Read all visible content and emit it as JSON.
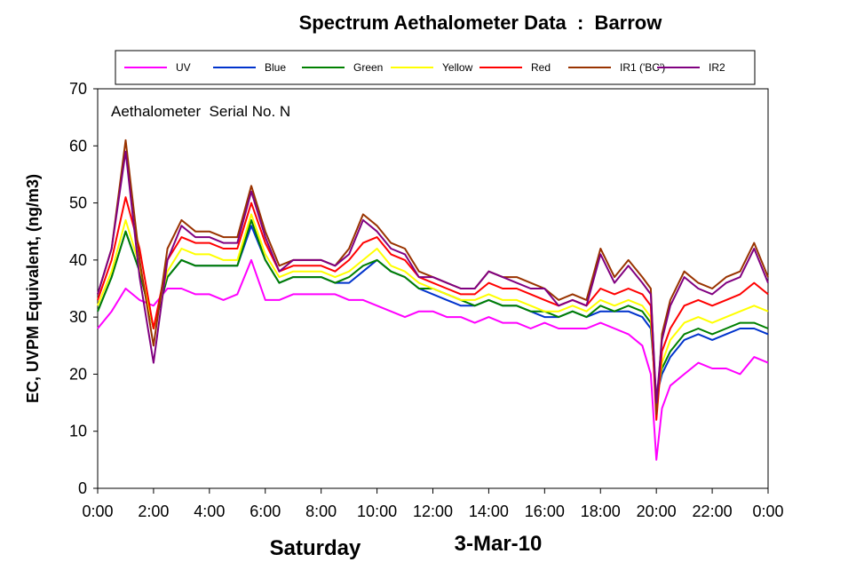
{
  "chart_data": {
    "type": "line",
    "title": "Spectrum Aethalometer Data  :  Barrow",
    "ylabel": "EC, UVPM Equivalent, (ng/m3)",
    "annotation": "Aethalometer  Serial No. N",
    "day_label": "Saturday",
    "date_label": "3-Mar-10",
    "ylim": [
      0,
      70
    ],
    "yticks": [
      "0",
      "10",
      "20",
      "30",
      "40",
      "50",
      "60",
      "70"
    ],
    "xlim": [
      0,
      24
    ],
    "xticks": [
      "0:00",
      "2:00",
      "4:00",
      "6:00",
      "8:00",
      "10:00",
      "12:00",
      "14:00",
      "16:00",
      "18:00",
      "20:00",
      "22:00",
      "0:00"
    ],
    "x_hours": [
      0,
      0.5,
      1,
      1.5,
      2,
      2.5,
      3,
      3.5,
      4,
      4.5,
      5,
      5.5,
      6,
      6.5,
      7,
      7.5,
      8,
      8.5,
      9,
      9.5,
      10,
      10.5,
      11,
      11.5,
      12,
      12.5,
      13,
      13.5,
      14,
      14.5,
      15,
      15.5,
      16,
      16.5,
      17,
      17.5,
      18,
      18.5,
      19,
      19.5,
      19.8,
      20,
      20.2,
      20.5,
      21,
      21.5,
      22,
      22.5,
      23,
      23.5,
      24
    ],
    "legend_position": "top",
    "series": [
      {
        "name": "UV",
        "color": "#ff00ff",
        "values": [
          28,
          31,
          35,
          33,
          32,
          35,
          35,
          34,
          34,
          33,
          34,
          40,
          33,
          33,
          34,
          34,
          34,
          34,
          33,
          33,
          32,
          31,
          30,
          31,
          31,
          30,
          30,
          29,
          30,
          29,
          29,
          28,
          29,
          28,
          28,
          28,
          29,
          28,
          27,
          25,
          20,
          5,
          14,
          18,
          20,
          22,
          21,
          21,
          20,
          23,
          22
        ]
      },
      {
        "name": "Blue",
        "color": "#0033cc",
        "values": [
          31,
          37,
          45,
          38,
          28,
          37,
          40,
          39,
          39,
          39,
          39,
          46,
          40,
          36,
          37,
          37,
          37,
          36,
          36,
          38,
          40,
          38,
          37,
          35,
          34,
          33,
          32,
          32,
          33,
          32,
          32,
          31,
          30,
          30,
          31,
          30,
          31,
          31,
          31,
          30,
          28,
          16,
          20,
          23,
          26,
          27,
          26,
          27,
          28,
          28,
          27
        ]
      },
      {
        "name": "Green",
        "color": "#008000",
        "values": [
          31,
          37,
          45,
          38,
          28,
          37,
          40,
          39,
          39,
          39,
          39,
          47,
          40,
          36,
          37,
          37,
          37,
          36,
          37,
          39,
          40,
          38,
          37,
          35,
          35,
          34,
          33,
          32,
          33,
          32,
          32,
          31,
          31,
          30,
          31,
          30,
          32,
          31,
          32,
          31,
          29,
          16,
          21,
          24,
          27,
          28,
          27,
          28,
          29,
          29,
          28
        ]
      },
      {
        "name": "Yellow",
        "color": "#ffff00",
        "values": [
          32,
          38,
          47,
          39,
          28,
          38,
          42,
          41,
          41,
          40,
          40,
          48,
          41,
          37,
          38,
          38,
          38,
          37,
          38,
          40,
          42,
          39,
          38,
          36,
          35,
          34,
          33,
          33,
          34,
          33,
          33,
          32,
          31,
          31,
          32,
          31,
          33,
          32,
          33,
          32,
          30,
          14,
          22,
          26,
          29,
          30,
          29,
          30,
          31,
          32,
          31
        ]
      },
      {
        "name": "Red",
        "color": "#ff0000",
        "values": [
          33,
          40,
          51,
          42,
          28,
          40,
          44,
          43,
          43,
          42,
          42,
          50,
          43,
          38,
          39,
          39,
          39,
          38,
          40,
          43,
          44,
          41,
          40,
          37,
          36,
          35,
          34,
          34,
          36,
          35,
          35,
          34,
          33,
          32,
          33,
          32,
          35,
          34,
          35,
          34,
          32,
          12,
          24,
          28,
          32,
          33,
          32,
          33,
          34,
          36,
          34
        ]
      },
      {
        "name": "IR1 ('BC')",
        "color": "#993300",
        "values": [
          34,
          42,
          61,
          40,
          25,
          42,
          47,
          45,
          45,
          44,
          44,
          53,
          45,
          39,
          40,
          40,
          40,
          39,
          42,
          48,
          46,
          43,
          42,
          38,
          37,
          36,
          35,
          35,
          38,
          37,
          37,
          36,
          35,
          33,
          34,
          33,
          42,
          37,
          40,
          37,
          35,
          13,
          27,
          33,
          38,
          36,
          35,
          37,
          38,
          43,
          37
        ]
      },
      {
        "name": "IR2",
        "color": "#800080",
        "values": [
          34,
          42,
          59,
          37,
          22,
          40,
          46,
          44,
          44,
          43,
          43,
          52,
          44,
          38,
          40,
          40,
          40,
          39,
          41,
          47,
          45,
          42,
          41,
          37,
          37,
          36,
          35,
          35,
          38,
          37,
          36,
          35,
          35,
          32,
          33,
          32,
          41,
          36,
          39,
          36,
          34,
          15,
          26,
          32,
          37,
          35,
          34,
          36,
          37,
          42,
          36
        ]
      }
    ]
  }
}
